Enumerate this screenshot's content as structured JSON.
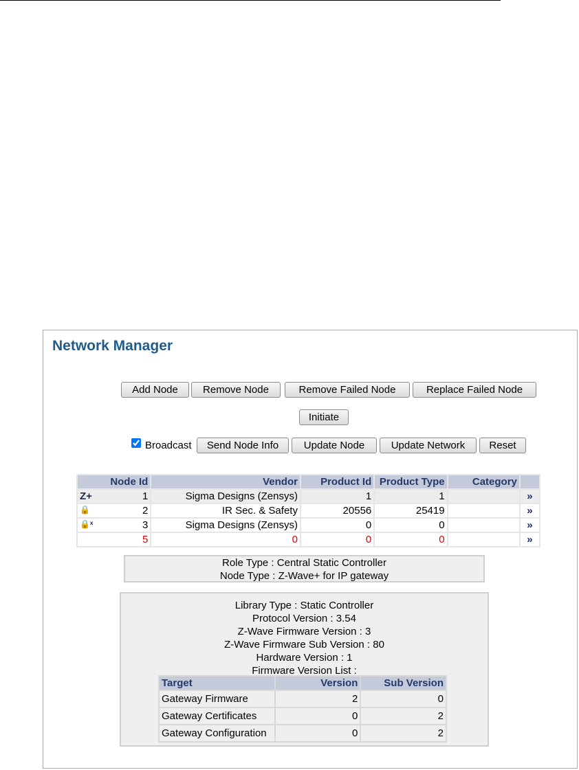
{
  "title": "Network Manager",
  "buttons": {
    "add_node": "Add Node",
    "remove_node": "Remove Node",
    "remove_failed_node": "Remove Failed Node",
    "replace_failed_node": "Replace Failed Node",
    "initiate": "Initiate",
    "send_node_info": "Send Node Info",
    "update_node": "Update Node",
    "update_network": "Update Network",
    "reset": "Reset"
  },
  "broadcast": {
    "label": "Broadcast",
    "checked": true
  },
  "node_table": {
    "headers": [
      "Node Id",
      "Vendor",
      "Product Id",
      "Product Type",
      "Category"
    ],
    "rows": [
      {
        "icon": "zwave-plus-icon",
        "node_id": "1",
        "vendor": "Sigma Designs (Zensys)",
        "product_id": "1",
        "product_type": "1",
        "category": "",
        "selected": true
      },
      {
        "icon": "lock-icon",
        "node_id": "2",
        "vendor": "IR Sec. & Safety",
        "product_id": "20556",
        "product_type": "25419",
        "category": ""
      },
      {
        "icon": "lock-x-icon",
        "node_id": "3",
        "vendor": "Sigma Designs (Zensys)",
        "product_id": "0",
        "product_type": "0",
        "category": ""
      },
      {
        "icon": "",
        "node_id": "5",
        "vendor": "0",
        "product_id": "0",
        "product_type": "0",
        "category": "",
        "error": true
      }
    ],
    "row_action": "»"
  },
  "role_info": {
    "role_type": "Role Type : Central Static Controller",
    "node_type": "Node Type : Z-Wave+ for IP gateway"
  },
  "library_info": {
    "lines": [
      "Library Type : Static Controller",
      "Protocol Version : 3.54",
      "Z-Wave Firmware Version : 3",
      "Z-Wave Firmware Sub Version : 80",
      "Hardware Version : 1",
      "Firmware Version List :"
    ]
  },
  "firmware_table": {
    "headers": [
      "Target",
      "Version",
      "Sub Version"
    ],
    "rows": [
      [
        "Gateway Firmware",
        "2",
        "0"
      ],
      [
        "Gateway Certificates",
        "0",
        "2"
      ],
      [
        "Gateway Configuration",
        "0",
        "2"
      ]
    ]
  },
  "colors": {
    "title": "#1f5c8c",
    "header_bg": "#c5cadb",
    "header_text": "#243a6b",
    "error": "#e00000"
  }
}
